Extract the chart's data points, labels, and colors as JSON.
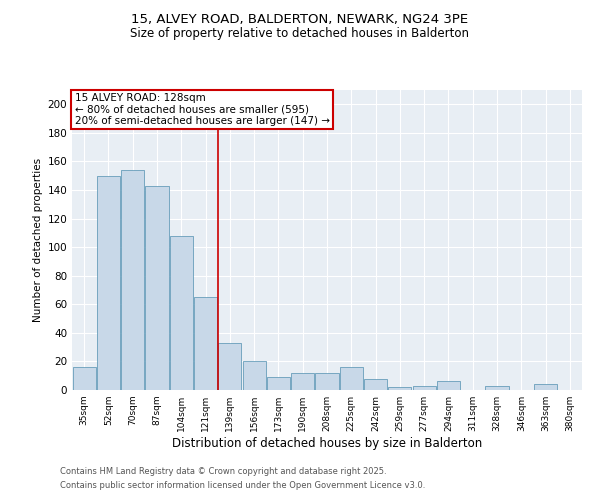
{
  "title1": "15, ALVEY ROAD, BALDERTON, NEWARK, NG24 3PE",
  "title2": "Size of property relative to detached houses in Balderton",
  "xlabel": "Distribution of detached houses by size in Balderton",
  "ylabel": "Number of detached properties",
  "footnote1": "Contains HM Land Registry data © Crown copyright and database right 2025.",
  "footnote2": "Contains public sector information licensed under the Open Government Licence v3.0.",
  "annotation_line1": "15 ALVEY ROAD: 128sqm",
  "annotation_line2": "← 80% of detached houses are smaller (595)",
  "annotation_line3": "20% of semi-detached houses are larger (147) →",
  "bar_color": "#c8d8e8",
  "bar_edge_color": "#5090b0",
  "ref_line_color": "#cc0000",
  "annotation_box_color": "#cc0000",
  "bg_color": "#e8eef4",
  "categories": [
    "35sqm",
    "52sqm",
    "70sqm",
    "87sqm",
    "104sqm",
    "121sqm",
    "139sqm",
    "156sqm",
    "173sqm",
    "190sqm",
    "208sqm",
    "225sqm",
    "242sqm",
    "259sqm",
    "277sqm",
    "294sqm",
    "311sqm",
    "328sqm",
    "346sqm",
    "363sqm",
    "380sqm"
  ],
  "values": [
    16,
    150,
    154,
    143,
    108,
    65,
    33,
    20,
    9,
    12,
    12,
    16,
    8,
    2,
    3,
    6,
    0,
    3,
    0,
    4,
    0
  ],
  "ref_line_index": 5.5,
  "ylim": [
    0,
    210
  ],
  "yticks": [
    0,
    20,
    40,
    60,
    80,
    100,
    120,
    140,
    160,
    180,
    200
  ]
}
